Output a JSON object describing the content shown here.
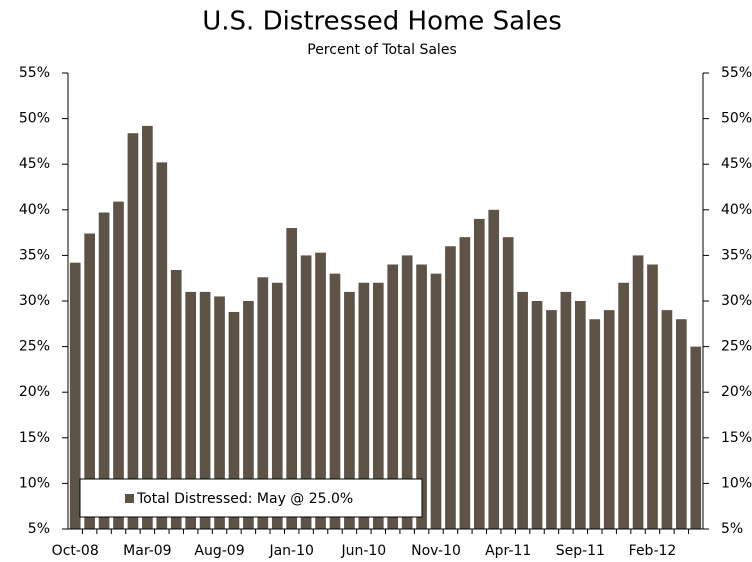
{
  "chart_data": {
    "type": "bar",
    "title": "U.S. Distressed Home Sales",
    "subtitle": "Percent of Total Sales",
    "legend_text": "Total Distressed: May @ 25.0%",
    "color": "#5e5347",
    "categories": [
      "Oct-08",
      null,
      null,
      null,
      null,
      "Mar-09",
      null,
      null,
      null,
      null,
      "Aug-09",
      null,
      null,
      null,
      null,
      "Jan-10",
      null,
      null,
      null,
      null,
      "Jun-10",
      null,
      null,
      null,
      null,
      "Nov-10",
      null,
      null,
      null,
      null,
      "Apr-11",
      null,
      null,
      null,
      null,
      "Sep-11",
      null,
      null,
      null,
      null,
      "Feb-12",
      null,
      null,
      null
    ],
    "values": [
      34.2,
      37.4,
      39.7,
      40.9,
      48.4,
      49.2,
      45.2,
      33.4,
      31.0,
      31.0,
      30.5,
      28.8,
      30.0,
      32.6,
      32.0,
      38.0,
      35.0,
      35.3,
      33.0,
      31.0,
      32.0,
      32.0,
      34.0,
      35.0,
      34.0,
      33.0,
      36.0,
      37.0,
      39.0,
      40.0,
      37.0,
      31.0,
      30.0,
      29.0,
      31.0,
      30.0,
      28.0,
      29.0,
      32.0,
      35.0,
      34.0,
      29.0,
      28.0,
      25.0
    ],
    "ylim": [
      5,
      55
    ],
    "yticks": [
      {
        "value": 5,
        "label": "5%"
      },
      {
        "value": 10,
        "label": "10%"
      },
      {
        "value": 15,
        "label": "15%"
      },
      {
        "value": 20,
        "label": "20%"
      },
      {
        "value": 25,
        "label": "25%"
      },
      {
        "value": 30,
        "label": "30%"
      },
      {
        "value": 35,
        "label": "35%"
      },
      {
        "value": 40,
        "label": "40%"
      },
      {
        "value": 45,
        "label": "45%"
      },
      {
        "value": 50,
        "label": "50%"
      },
      {
        "value": 55,
        "label": "55%"
      }
    ],
    "y2lim": [
      5,
      55
    ],
    "y2ticks": [
      {
        "value": 5,
        "label": "5%"
      },
      {
        "value": 10,
        "label": "10%"
      },
      {
        "value": 15,
        "label": "15%"
      },
      {
        "value": 20,
        "label": "20%"
      },
      {
        "value": 25,
        "label": "25%"
      },
      {
        "value": 30,
        "label": "30%"
      },
      {
        "value": 35,
        "label": "35%"
      },
      {
        "value": 40,
        "label": "40%"
      },
      {
        "value": 45,
        "label": "45%"
      },
      {
        "value": 50,
        "label": "50%"
      },
      {
        "value": 55,
        "label": "55%"
      }
    ]
  }
}
